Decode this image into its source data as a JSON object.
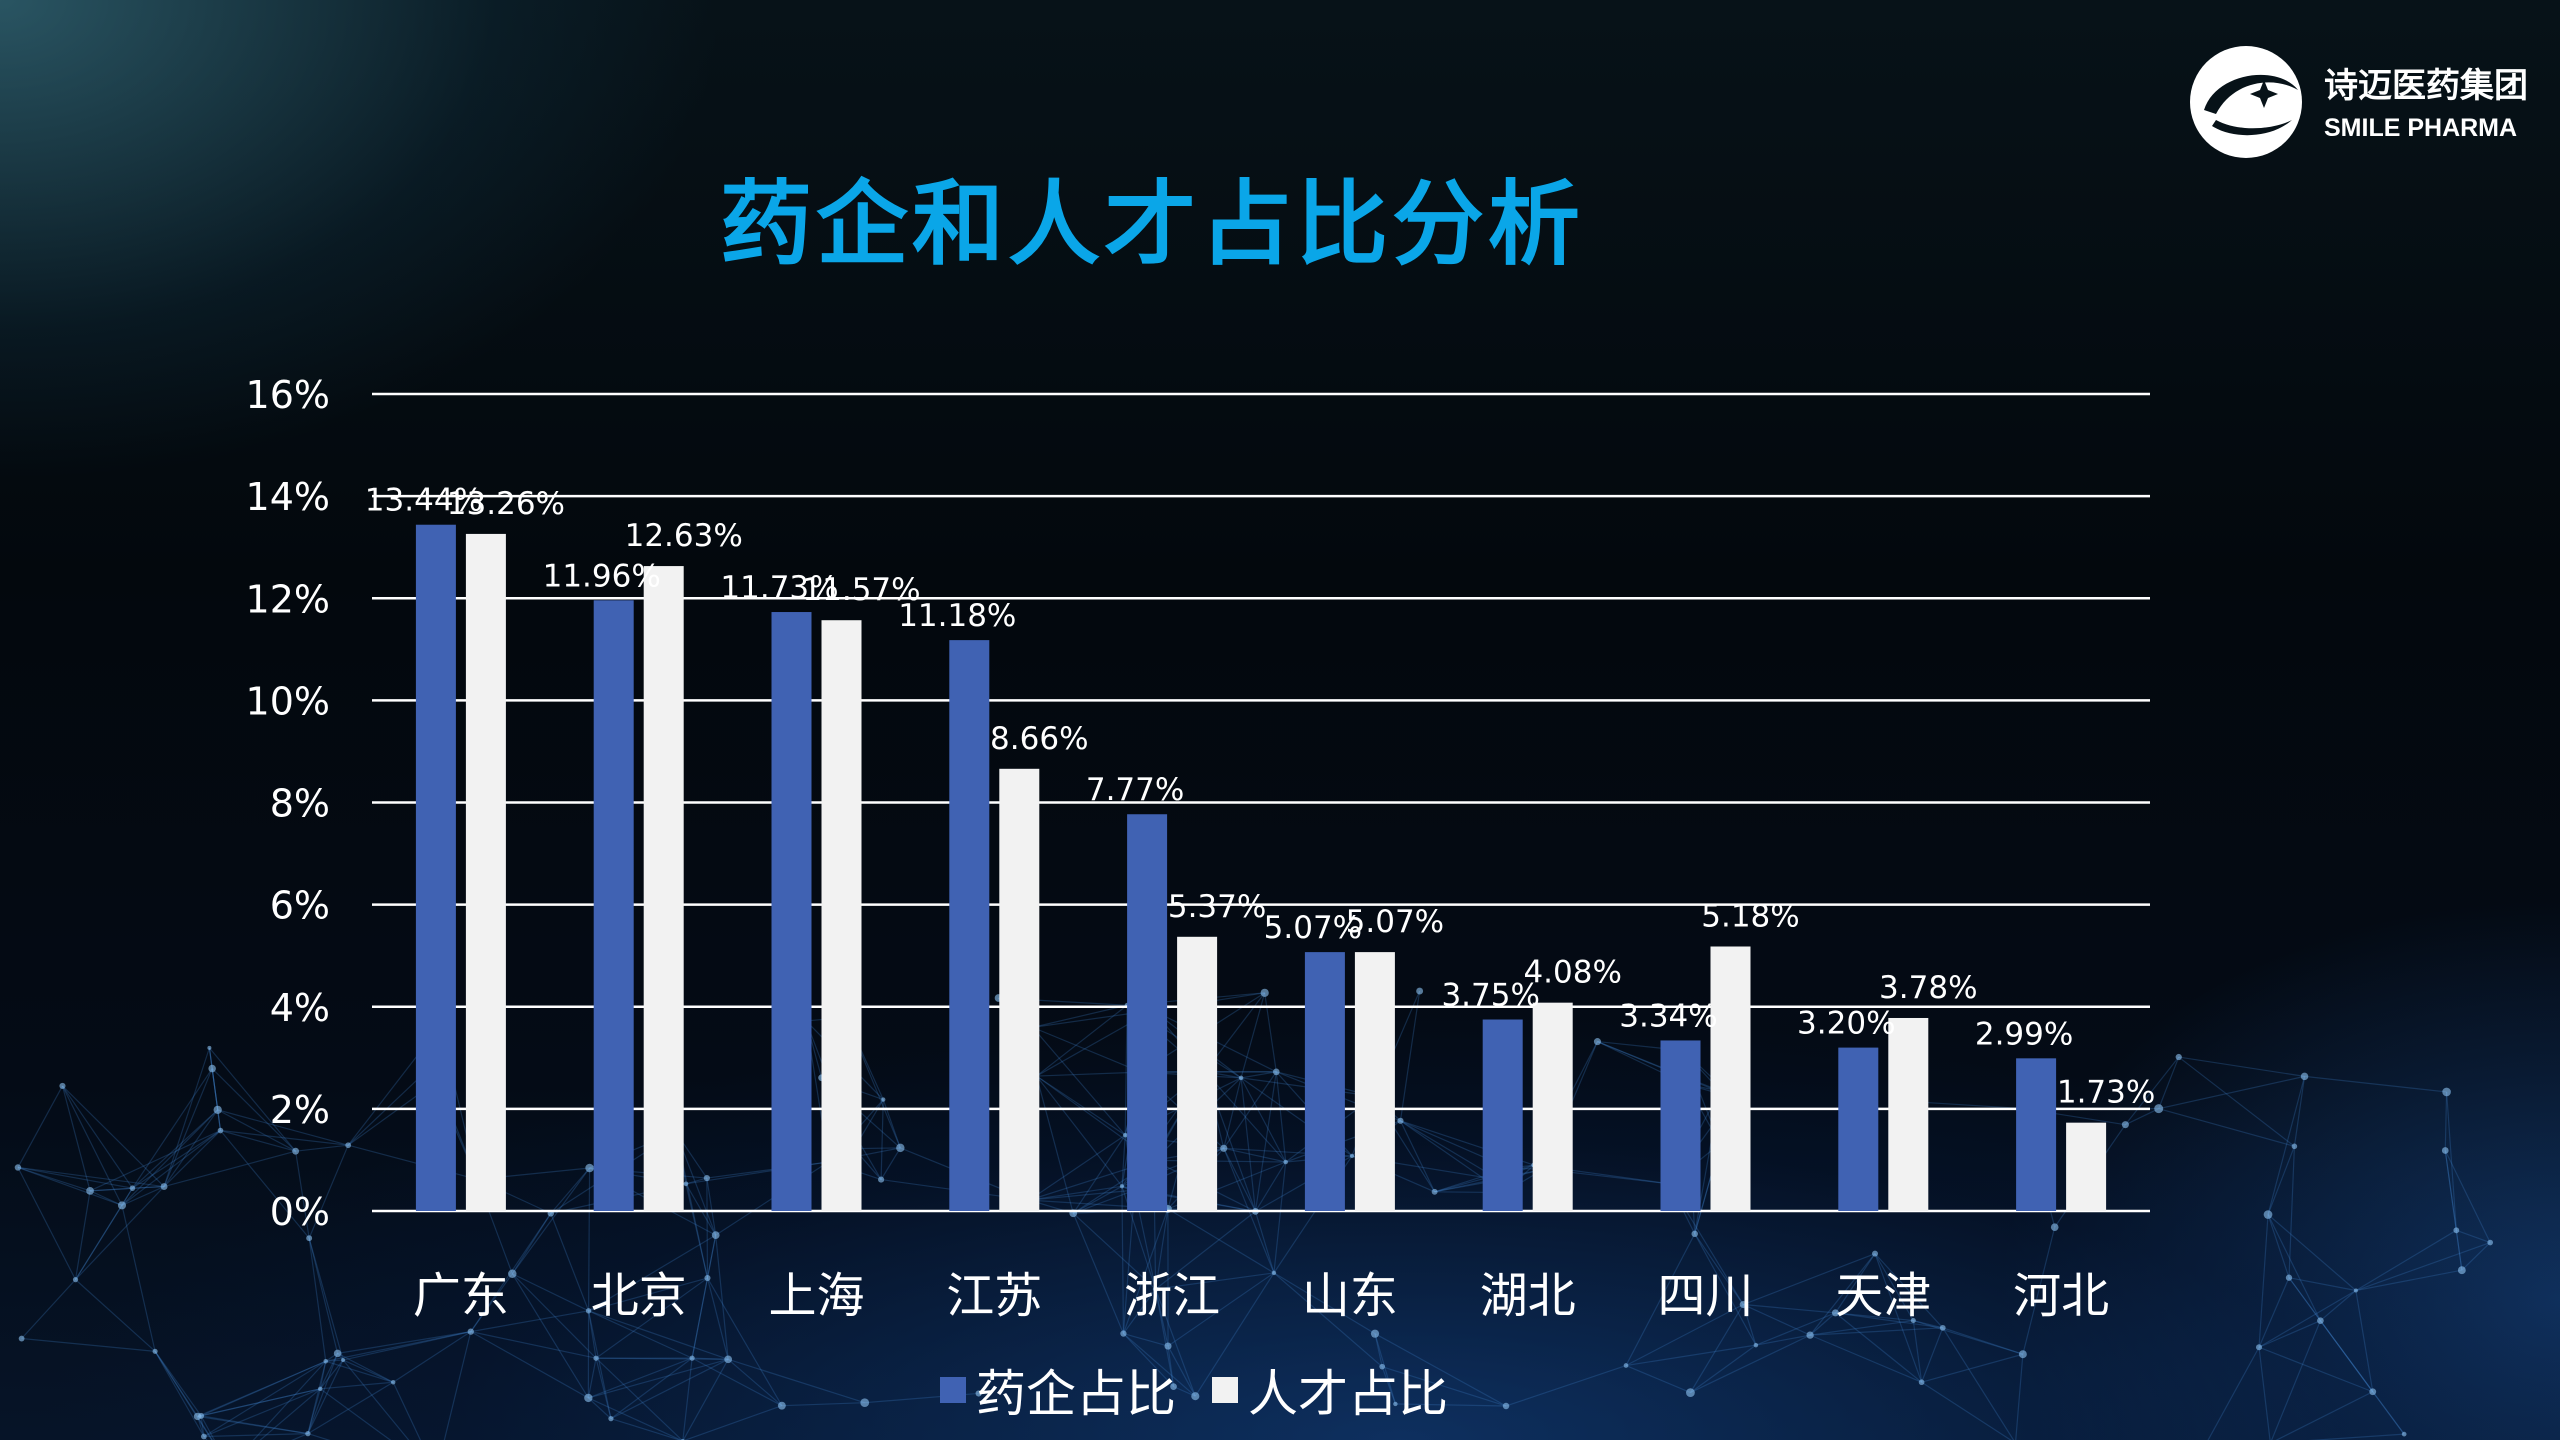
{
  "slide": {
    "title": "药企和人才占比分析"
  },
  "logo": {
    "name_cn": "诗迈医药集团",
    "name_en": "SMILE PHARMA",
    "icon": "smile-pharma-logo-icon"
  },
  "colors": {
    "title": "#0aa6e8",
    "series_company": "#4062b3",
    "series_talent": "#f2f2f2",
    "grid": "#ffffff",
    "text": "#ffffff"
  },
  "chart_data": {
    "type": "bar",
    "title": "",
    "xlabel": "",
    "ylabel": "",
    "categories": [
      "广东",
      "北京",
      "上海",
      "江苏",
      "浙江",
      "山东",
      "湖北",
      "四川",
      "天津",
      "河北"
    ],
    "series": [
      {
        "name": "药企占比",
        "values": [
          13.44,
          11.96,
          11.73,
          11.18,
          7.77,
          5.07,
          3.75,
          3.34,
          3.2,
          2.99
        ],
        "labels": [
          "13.44%",
          "11.96%",
          "11.73%",
          "11.18%",
          "7.77%",
          "5.07%",
          "3.75%",
          "3.34%",
          "3.20%",
          "2.99%"
        ]
      },
      {
        "name": "人才占比",
        "values": [
          13.26,
          12.63,
          11.57,
          8.66,
          5.37,
          5.07,
          4.08,
          5.18,
          3.78,
          1.73
        ],
        "labels": [
          "13.26%",
          "12.63%",
          "11.57%",
          "8.66%",
          "5.37%",
          "5.07%",
          "4.08%",
          "5.18%",
          "3.78%",
          "1.73%"
        ]
      }
    ],
    "ylim": [
      0,
      16
    ],
    "yticks": [
      0,
      2,
      4,
      6,
      8,
      10,
      12,
      14,
      16
    ],
    "ytick_labels": [
      "0%",
      "2%",
      "4%",
      "6%",
      "8%",
      "10%",
      "12%",
      "14%",
      "16%"
    ],
    "grid": true,
    "legend_position": "bottom-center"
  }
}
